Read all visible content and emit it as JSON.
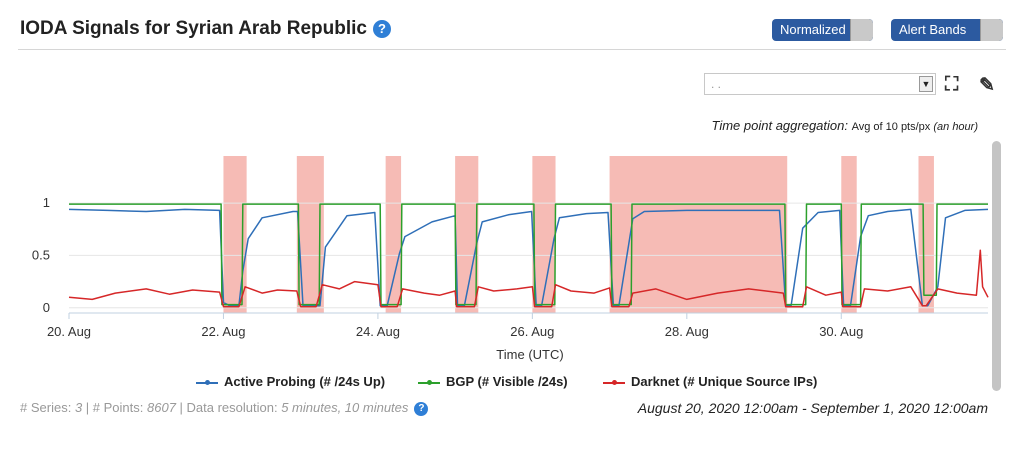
{
  "header": {
    "title": "IODA Signals for Syrian Arab Republic",
    "help_glyph": "?",
    "normalized_label": "Normalized",
    "alert_bands_label": "Alert Bands"
  },
  "toolbar": {
    "select_value": ". .",
    "fullscreen_icon": "expand-icon",
    "edit_icon": "edit-icon"
  },
  "aggregation": {
    "label": "Time point aggregation:",
    "value": "Avg of 10 pts/px",
    "unit": "(an hour)"
  },
  "colors": {
    "active_probing": "#2f6fb8",
    "bgp": "#2ca02c",
    "darknet": "#d62728",
    "alert_band": "#f3a49c"
  },
  "chart_data": {
    "type": "line",
    "xlabel": "Time (UTC)",
    "ylabel": "",
    "xlim": [
      20.0,
      31.9
    ],
    "ylim": [
      -0.05,
      1.45
    ],
    "x_unit": "days of August 2020",
    "x_tick_labels": [
      {
        "x": 20,
        "label": "20. Aug"
      },
      {
        "x": 22,
        "label": "22. Aug"
      },
      {
        "x": 24,
        "label": "24. Aug"
      },
      {
        "x": 26,
        "label": "26. Aug"
      },
      {
        "x": 28,
        "label": "28. Aug"
      },
      {
        "x": 30,
        "label": "30. Aug"
      }
    ],
    "y_ticks": [
      {
        "y": 0,
        "label": "0"
      },
      {
        "y": 0.5,
        "label": "0.5"
      },
      {
        "y": 1,
        "label": "1"
      }
    ],
    "alert_bands": [
      [
        22.0,
        22.3
      ],
      [
        22.95,
        23.3
      ],
      [
        24.1,
        24.3
      ],
      [
        25.0,
        25.3
      ],
      [
        26.0,
        26.3
      ],
      [
        27.0,
        29.3
      ],
      [
        30.0,
        30.2
      ],
      [
        31.0,
        31.2
      ]
    ],
    "series": [
      {
        "name": "Active Probing (# /24s Up)",
        "color": "#2f6fb8",
        "x": [
          20.0,
          20.5,
          21.0,
          21.5,
          21.95,
          22.0,
          22.08,
          22.2,
          22.25,
          22.32,
          22.5,
          22.9,
          22.96,
          23.03,
          23.25,
          23.32,
          23.6,
          23.96,
          24.03,
          24.12,
          24.28,
          24.35,
          24.7,
          25.0,
          25.03,
          25.12,
          25.28,
          25.35,
          25.7,
          25.99,
          26.05,
          26.12,
          26.28,
          26.35,
          26.7,
          26.98,
          27.05,
          27.12,
          27.3,
          27.45,
          28.0,
          28.6,
          29.2,
          29.28,
          29.35,
          29.5,
          29.7,
          29.98,
          30.03,
          30.12,
          30.25,
          30.35,
          30.6,
          30.9,
          31.05,
          31.12,
          31.25,
          31.35,
          31.6,
          31.9
        ],
        "y": [
          0.94,
          0.93,
          0.92,
          0.94,
          0.93,
          0.05,
          0.02,
          0.02,
          0.35,
          0.66,
          0.86,
          0.92,
          0.92,
          0.02,
          0.02,
          0.58,
          0.88,
          0.91,
          0.02,
          0.02,
          0.52,
          0.68,
          0.82,
          0.88,
          0.02,
          0.02,
          0.62,
          0.82,
          0.89,
          0.92,
          0.02,
          0.02,
          0.66,
          0.86,
          0.9,
          0.91,
          0.02,
          0.02,
          0.85,
          0.92,
          0.93,
          0.93,
          0.93,
          0.02,
          0.02,
          0.76,
          0.91,
          0.93,
          0.02,
          0.02,
          0.68,
          0.88,
          0.92,
          0.94,
          0.02,
          0.02,
          0.2,
          0.86,
          0.93,
          0.94
        ]
      },
      {
        "name": "BGP (# Visible /24s)",
        "color": "#2ca02c",
        "x": [
          20.0,
          21.97,
          21.98,
          22.24,
          22.25,
          22.97,
          22.98,
          23.24,
          23.25,
          24.03,
          24.04,
          24.3,
          24.31,
          25.0,
          25.01,
          25.27,
          25.28,
          26.02,
          26.03,
          26.29,
          26.3,
          27.02,
          27.03,
          27.28,
          27.29,
          29.27,
          29.28,
          29.54,
          29.55,
          30.0,
          30.01,
          30.25,
          30.26,
          31.06,
          31.07,
          31.23,
          31.24,
          31.9
        ],
        "y": [
          0.99,
          0.99,
          0.03,
          0.03,
          0.99,
          0.99,
          0.03,
          0.03,
          0.99,
          0.99,
          0.03,
          0.03,
          0.99,
          0.99,
          0.03,
          0.03,
          0.99,
          0.99,
          0.03,
          0.03,
          0.99,
          0.99,
          0.03,
          0.03,
          0.99,
          0.99,
          0.03,
          0.03,
          0.99,
          0.99,
          0.03,
          0.03,
          0.99,
          0.99,
          0.12,
          0.12,
          0.99,
          0.99
        ]
      },
      {
        "name": "Darknet (# Unique Source IPs)",
        "color": "#d62728",
        "x": [
          20.0,
          20.3,
          20.6,
          21.0,
          21.3,
          21.6,
          21.95,
          22.0,
          22.2,
          22.28,
          22.5,
          22.7,
          22.95,
          23.0,
          23.2,
          23.28,
          23.5,
          23.7,
          24.0,
          24.04,
          24.25,
          24.32,
          24.6,
          24.8,
          25.0,
          25.02,
          25.25,
          25.3,
          25.5,
          25.8,
          26.0,
          26.03,
          26.25,
          26.3,
          26.5,
          26.8,
          27.0,
          27.03,
          27.25,
          27.3,
          27.6,
          28.0,
          28.4,
          28.8,
          29.25,
          29.28,
          29.5,
          29.55,
          29.8,
          30.0,
          30.02,
          30.25,
          30.3,
          30.6,
          30.9,
          31.05,
          31.1,
          31.25,
          31.5,
          31.75,
          31.8,
          31.83,
          31.9
        ],
        "y": [
          0.1,
          0.08,
          0.14,
          0.18,
          0.13,
          0.17,
          0.15,
          0.01,
          0.01,
          0.2,
          0.14,
          0.17,
          0.16,
          0.01,
          0.01,
          0.22,
          0.18,
          0.25,
          0.22,
          0.01,
          0.01,
          0.18,
          0.14,
          0.12,
          0.16,
          0.01,
          0.01,
          0.2,
          0.16,
          0.18,
          0.2,
          0.01,
          0.01,
          0.22,
          0.16,
          0.14,
          0.19,
          0.01,
          0.01,
          0.14,
          0.18,
          0.08,
          0.14,
          0.18,
          0.14,
          0.01,
          0.01,
          0.2,
          0.12,
          0.15,
          0.01,
          0.01,
          0.18,
          0.16,
          0.2,
          0.02,
          0.02,
          0.18,
          0.14,
          0.12,
          0.55,
          0.2,
          0.1
        ]
      }
    ]
  },
  "footer": {
    "series_label": "# Series:",
    "series_value": "3",
    "points_label": "# Points:",
    "points_value": "8607",
    "resolution_label": "Data resolution:",
    "resolution_value": "5 minutes, 10 minutes",
    "date_range": "August 20, 2020 12:00am - September 1, 2020 12:00am"
  }
}
